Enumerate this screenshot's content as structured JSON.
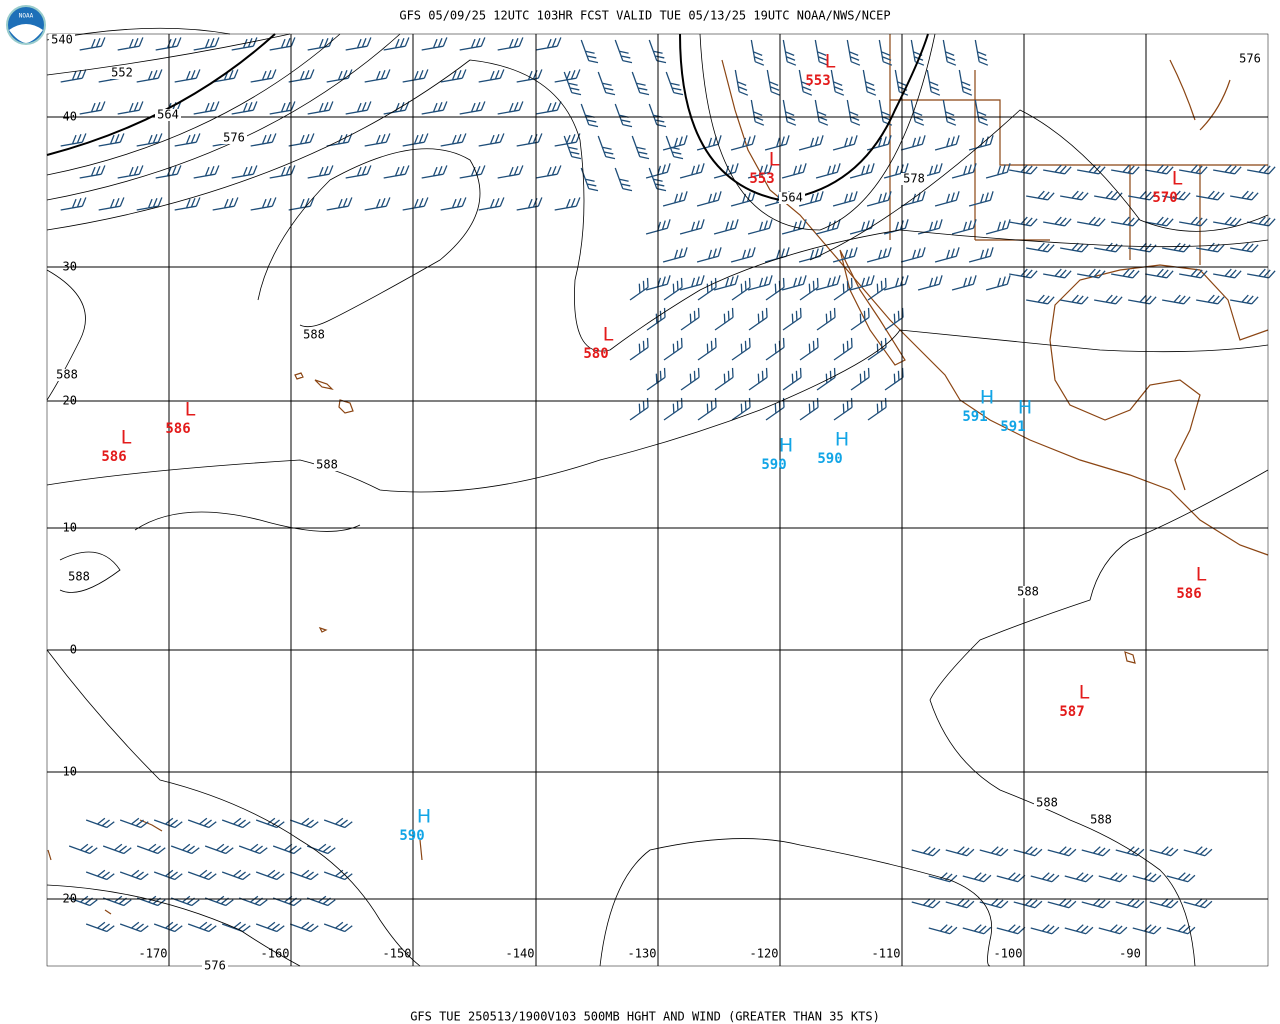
{
  "header": {
    "title": "GFS 05/09/25 12UTC 103HR FCST VALID TUE 05/13/25 19UTC NOAA/NWS/NCEP",
    "logo": "NOAA"
  },
  "footer": {
    "caption": "GFS TUE 250513/1900V103 500MB HGHT AND WIND (GREATER THAN 35 KTS)"
  },
  "grid": {
    "lat_labels": [
      "40",
      "30",
      "20",
      "10",
      "0",
      "-10",
      "-20"
    ],
    "lon_labels": [
      "-170",
      "-160",
      "-150",
      "-140",
      "-130",
      "-120",
      "-110",
      "-100",
      "-90"
    ]
  },
  "contour_labels": [
    "540",
    "552",
    "564",
    "576",
    "588",
    "588",
    "588",
    "588",
    "564",
    "578",
    "576",
    "588",
    "588",
    "588",
    "576"
  ],
  "centers": [
    {
      "symbol": "L",
      "value": "553"
    },
    {
      "symbol": "L",
      "value": "553"
    },
    {
      "symbol": "L",
      "value": "570"
    },
    {
      "symbol": "L",
      "value": "580"
    },
    {
      "symbol": "L",
      "value": "586"
    },
    {
      "symbol": "L",
      "value": "586"
    },
    {
      "symbol": "H",
      "value": "590"
    },
    {
      "symbol": "H",
      "value": "590"
    },
    {
      "symbol": "H",
      "value": "591"
    },
    {
      "symbol": "H",
      "value": "591"
    },
    {
      "symbol": "L",
      "value": "586"
    },
    {
      "symbol": "L",
      "value": "587"
    },
    {
      "symbol": "H",
      "value": "590"
    }
  ]
}
